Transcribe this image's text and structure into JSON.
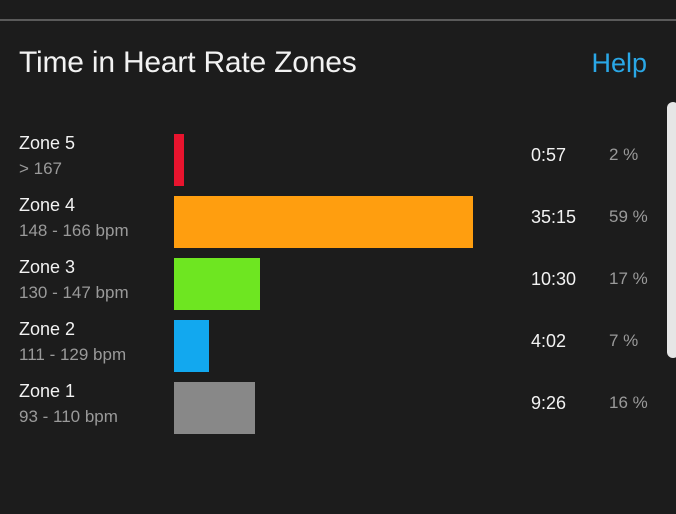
{
  "header": {
    "title": "Time in Heart Rate Zones",
    "help_label": "Help"
  },
  "zones": [
    {
      "name": "Zone 5",
      "range": "> 167",
      "time": "0:57",
      "percent_label": "2 %",
      "percent": 2,
      "color": "#e8142e"
    },
    {
      "name": "Zone 4",
      "range": "148 - 166 bpm",
      "time": "35:15",
      "percent_label": "59 %",
      "percent": 59,
      "color": "#ff9e0f"
    },
    {
      "name": "Zone 3",
      "range": "130 - 147 bpm",
      "time": "10:30",
      "percent_label": "17 %",
      "percent": 17,
      "color": "#6ee621"
    },
    {
      "name": "Zone 2",
      "range": "111 - 129 bpm",
      "time": "4:02",
      "percent_label": "7 %",
      "percent": 7,
      "color": "#12a8ef"
    },
    {
      "name": "Zone 1",
      "range": "93 - 110 bpm",
      "time": "9:26",
      "percent_label": "16 %",
      "percent": 16,
      "color": "#888888"
    }
  ],
  "colors": {
    "background": "#1c1c1c",
    "accent": "#2aa7e6"
  }
}
